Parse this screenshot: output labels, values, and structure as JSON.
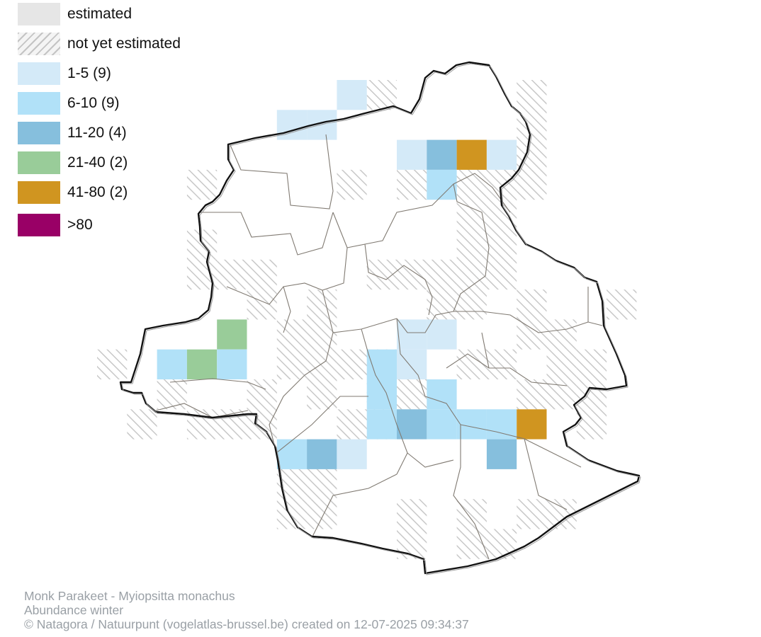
{
  "legend": {
    "items": [
      {
        "label": "estimated",
        "color": "#e6e6e6",
        "pattern": "solid"
      },
      {
        "label": "not yet estimated",
        "color": "#c8c8c8",
        "pattern": "hatch"
      },
      {
        "label": "1-5 (9)",
        "color": "#d4eaf8",
        "pattern": "solid"
      },
      {
        "label": "6-10 (9)",
        "color": "#b1e1f8",
        "pattern": "solid"
      },
      {
        "label": "11-20 (4)",
        "color": "#86bfdd",
        "pattern": "solid"
      },
      {
        "label": "21-40 (2)",
        "color": "#99cc99",
        "pattern": "solid"
      },
      {
        "label": "41-80 (2)",
        "color": "#d09520",
        "pattern": "solid"
      },
      {
        "label": ">80",
        "color": "#990066",
        "pattern": "solid"
      }
    ]
  },
  "footer": {
    "species": "Monk Parakeet - Myiopsitta monachus",
    "map_type": "Abundance winter",
    "credit": "© Natagora / Natuurpunt (vogelatlas-brussel.be) created on 12-07-2025 09:34:37"
  }
}
